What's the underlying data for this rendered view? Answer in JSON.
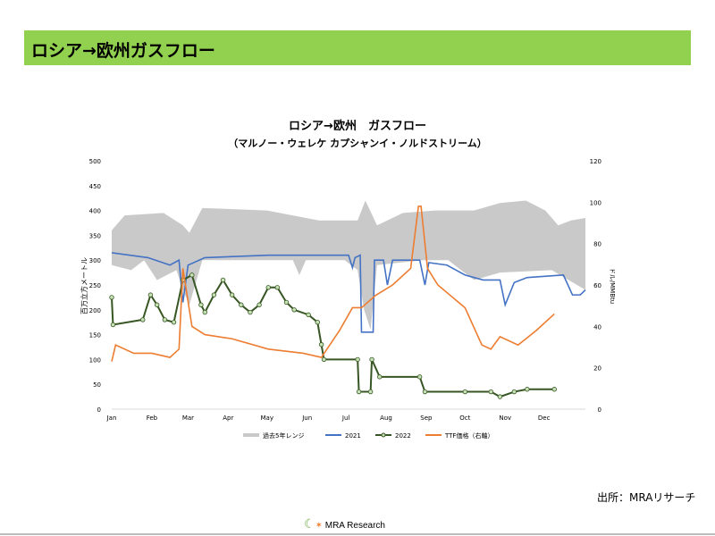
{
  "header": {
    "title": "ロシア→欧州ガスフロー"
  },
  "footer": {
    "source": "出所：MRAリサーチ",
    "logo": "MRA Research"
  },
  "chart_data": {
    "type": "line",
    "title": "ロシア→欧州　ガスフロー",
    "subtitle": "（マルノー・ウェレケ カプシャンイ・ノルドストリーム）",
    "ylabel": "百万立方メートル",
    "y2label": "ドル/MMBtu",
    "ylim": [
      0,
      500
    ],
    "y2lim": [
      0,
      120
    ],
    "yticks": [
      "0",
      "50",
      "100",
      "150",
      "200",
      "250",
      "300",
      "350",
      "400",
      "450",
      "500"
    ],
    "y2ticks": [
      "0",
      "20",
      "40",
      "60",
      "80",
      "100",
      "120"
    ],
    "x_unit": "day of year",
    "xlim": [
      0,
      366
    ],
    "xticks": [
      {
        "label": "Jan",
        "day": 0
      },
      {
        "label": "Feb",
        "day": 31
      },
      {
        "label": "Mar",
        "day": 59
      },
      {
        "label": "Apr",
        "day": 90
      },
      {
        "label": "May",
        "day": 120
      },
      {
        "label": "Jun",
        "day": 151
      },
      {
        "label": "Jul",
        "day": 181
      },
      {
        "label": "Aug",
        "day": 212
      },
      {
        "label": "Sep",
        "day": 243
      },
      {
        "label": "Oct",
        "day": 273
      },
      {
        "label": "Nov",
        "day": 304
      },
      {
        "label": "Dec",
        "day": 334
      }
    ],
    "range": {
      "name": "過去5年レンジ",
      "color": "#c9c9c9",
      "upper": [
        [
          0,
          360
        ],
        [
          10,
          390
        ],
        [
          40,
          395
        ],
        [
          55,
          370
        ],
        [
          60,
          355
        ],
        [
          70,
          405
        ],
        [
          120,
          400
        ],
        [
          160,
          380
        ],
        [
          190,
          380
        ],
        [
          196,
          420
        ],
        [
          205,
          370
        ],
        [
          225,
          395
        ],
        [
          250,
          400
        ],
        [
          280,
          400
        ],
        [
          300,
          415
        ],
        [
          320,
          420
        ],
        [
          335,
          400
        ],
        [
          345,
          370
        ],
        [
          355,
          380
        ],
        [
          366,
          385
        ]
      ],
      "lower": [
        [
          0,
          290
        ],
        [
          15,
          280
        ],
        [
          25,
          300
        ],
        [
          35,
          260
        ],
        [
          50,
          280
        ],
        [
          55,
          240
        ],
        [
          60,
          210
        ],
        [
          70,
          300
        ],
        [
          120,
          300
        ],
        [
          140,
          300
        ],
        [
          145,
          270
        ],
        [
          150,
          300
        ],
        [
          180,
          300
        ],
        [
          190,
          280
        ],
        [
          195,
          200
        ],
        [
          200,
          160
        ],
        [
          205,
          290
        ],
        [
          240,
          300
        ],
        [
          260,
          300
        ],
        [
          280,
          260
        ],
        [
          300,
          275
        ],
        [
          340,
          280
        ],
        [
          366,
          240
        ]
      ]
    },
    "series": [
      {
        "name": "2021",
        "color": "#4472c4",
        "axis": "left",
        "points": [
          [
            0,
            315
          ],
          [
            28,
            305
          ],
          [
            45,
            290
          ],
          [
            52,
            300
          ],
          [
            55,
            215
          ],
          [
            59,
            290
          ],
          [
            72,
            305
          ],
          [
            121,
            310
          ],
          [
            183,
            310
          ],
          [
            186,
            285
          ],
          [
            188,
            305
          ],
          [
            192,
            310
          ],
          [
            193,
            155
          ],
          [
            202,
            155
          ],
          [
            203,
            300
          ],
          [
            210,
            300
          ],
          [
            213,
            250
          ],
          [
            217,
            300
          ],
          [
            238,
            300
          ],
          [
            242,
            250
          ],
          [
            245,
            295
          ],
          [
            259,
            290
          ],
          [
            273,
            270
          ],
          [
            287,
            260
          ],
          [
            300,
            260
          ],
          [
            304,
            210
          ],
          [
            311,
            255
          ],
          [
            321,
            265
          ],
          [
            349,
            270
          ],
          [
            356,
            230
          ],
          [
            362,
            230
          ],
          [
            366,
            240
          ]
        ]
      },
      {
        "name": "2022",
        "color": "#375623",
        "marker": "#c5e0b4",
        "axis": "left",
        "points": [
          [
            0,
            225
          ],
          [
            1,
            170
          ],
          [
            24,
            180
          ],
          [
            30,
            230
          ],
          [
            35,
            210
          ],
          [
            41,
            180
          ],
          [
            48,
            175
          ],
          [
            55,
            260
          ],
          [
            62,
            270
          ],
          [
            69,
            210
          ],
          [
            72,
            195
          ],
          [
            79,
            230
          ],
          [
            86,
            260
          ],
          [
            93,
            230
          ],
          [
            100,
            210
          ],
          [
            107,
            195
          ],
          [
            114,
            210
          ],
          [
            121,
            245
          ],
          [
            128,
            245
          ],
          [
            135,
            215
          ],
          [
            141,
            200
          ],
          [
            152,
            190
          ],
          [
            159,
            175
          ],
          [
            162,
            130
          ],
          [
            164,
            100
          ],
          [
            190,
            100
          ],
          [
            191,
            35
          ],
          [
            200,
            35
          ],
          [
            201,
            100
          ],
          [
            207,
            65
          ],
          [
            238,
            65
          ],
          [
            242,
            35
          ],
          [
            273,
            35
          ],
          [
            293,
            35
          ],
          [
            300,
            25
          ],
          [
            311,
            35
          ],
          [
            321,
            40
          ],
          [
            342,
            40
          ]
        ]
      },
      {
        "name": "TTF価格（右軸）",
        "color": "#ed7d31",
        "axis": "right",
        "points": [
          [
            0,
            23
          ],
          [
            3,
            31
          ],
          [
            17,
            27
          ],
          [
            31,
            27
          ],
          [
            45,
            25
          ],
          [
            52,
            29
          ],
          [
            55,
            68
          ],
          [
            62,
            40
          ],
          [
            72,
            36
          ],
          [
            93,
            34
          ],
          [
            121,
            29
          ],
          [
            148,
            27
          ],
          [
            162,
            25
          ],
          [
            176,
            38
          ],
          [
            186,
            49
          ],
          [
            193,
            49
          ],
          [
            204,
            55
          ],
          [
            217,
            60
          ],
          [
            231,
            68
          ],
          [
            237,
            98
          ],
          [
            239,
            98
          ],
          [
            244,
            68
          ],
          [
            252,
            60
          ],
          [
            273,
            49
          ],
          [
            286,
            31
          ],
          [
            293,
            29
          ],
          [
            300,
            35
          ],
          [
            314,
            31
          ],
          [
            328,
            38
          ],
          [
            342,
            46
          ]
        ]
      }
    ],
    "legend": "bottom"
  }
}
